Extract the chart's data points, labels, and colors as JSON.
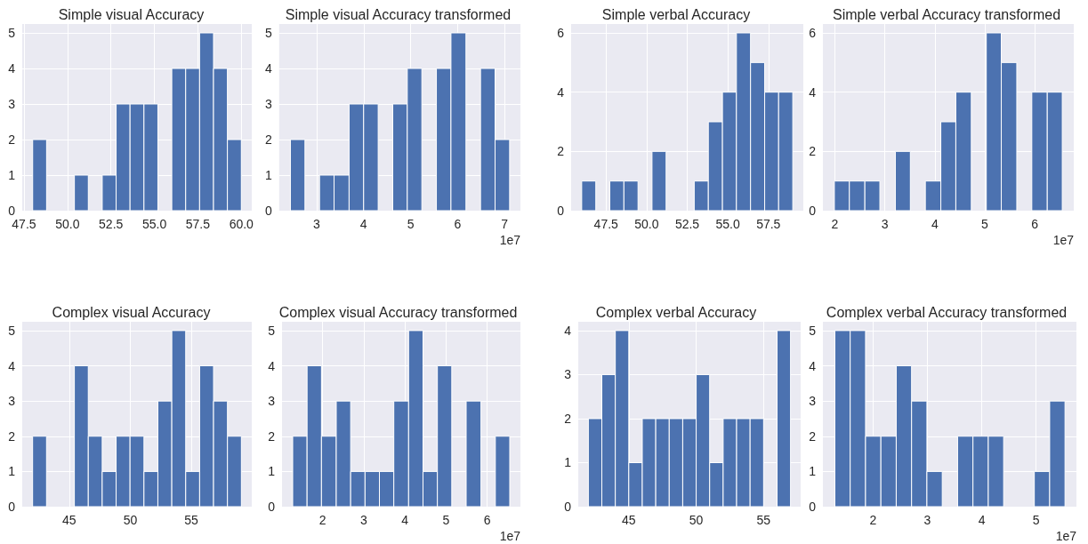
{
  "chart_data": [
    {
      "type": "histogram",
      "title": "Simple visual Accuracy",
      "color": "#4c72b0",
      "grid": true,
      "bins": [
        48.0,
        48.8,
        49.6,
        50.4,
        51.2,
        52.0,
        52.8,
        53.6,
        54.4,
        55.2,
        56.0,
        56.8,
        57.6,
        58.4,
        59.2,
        60.0
      ],
      "values": [
        2,
        0,
        0,
        1,
        0,
        1,
        3,
        3,
        3,
        0,
        4,
        4,
        5,
        4,
        2
      ],
      "xlim": [
        47.4,
        60.6
      ],
      "xticks": [
        {
          "value": 47.5,
          "label": "47.5"
        },
        {
          "value": 50,
          "label": "50.0"
        },
        {
          "value": 52.5,
          "label": "52.5"
        },
        {
          "value": 55,
          "label": "55.0"
        },
        {
          "value": 57.5,
          "label": "57.5"
        },
        {
          "value": 60,
          "label": "60.0"
        }
      ],
      "ylim": [
        0,
        5.25
      ],
      "yticks": [
        0,
        1,
        2,
        3,
        4,
        5
      ]
    },
    {
      "type": "histogram",
      "title": "Simple visual Accuracy transformed",
      "color": "#4c72b0",
      "grid": true,
      "annotations": [
        "1e7"
      ],
      "bins": [
        2.44,
        2.75,
        3.06,
        3.37,
        3.69,
        4.0,
        4.31,
        4.62,
        4.93,
        5.24,
        5.55,
        5.86,
        6.18,
        6.49,
        6.8,
        7.11
      ],
      "values": [
        2,
        0,
        1,
        1,
        3,
        3,
        0,
        3,
        4,
        0,
        4,
        5,
        0,
        4,
        2
      ],
      "xlim": [
        2.2,
        7.34
      ],
      "xticks": [
        3,
        4,
        5,
        6,
        7
      ],
      "ylim": [
        0,
        5.25
      ],
      "yticks": [
        0,
        1,
        2,
        3,
        4,
        5
      ]
    },
    {
      "type": "histogram",
      "title": "Simple verbal Accuracy",
      "color": "#4c72b0",
      "grid": true,
      "bins": [
        46.0,
        46.87,
        47.73,
        48.6,
        49.47,
        50.33,
        51.2,
        52.07,
        52.93,
        53.8,
        54.67,
        55.53,
        56.4,
        57.27,
        58.13,
        59.0
      ],
      "values": [
        1,
        0,
        1,
        1,
        0,
        2,
        0,
        0,
        1,
        3,
        4,
        6,
        5,
        4,
        4
      ],
      "xlim": [
        45.35,
        59.65
      ],
      "xticks": [
        {
          "value": 47.5,
          "label": "47.5"
        },
        {
          "value": 50,
          "label": "50.0"
        },
        {
          "value": 52.5,
          "label": "52.5"
        },
        {
          "value": 55,
          "label": "55.0"
        },
        {
          "value": 57.5,
          "label": "57.5"
        }
      ],
      "ylim": [
        0,
        6.3
      ],
      "yticks": [
        0,
        2,
        4,
        6
      ]
    },
    {
      "type": "histogram",
      "title": "Simple verbal Accuracy transformed",
      "color": "#4c72b0",
      "grid": true,
      "annotations": [
        "1e7"
      ],
      "bins": [
        1.99,
        2.29,
        2.6,
        2.9,
        3.21,
        3.51,
        3.81,
        4.12,
        4.42,
        4.73,
        5.03,
        5.33,
        5.64,
        5.94,
        6.25,
        6.55
      ],
      "values": [
        1,
        1,
        1,
        0,
        2,
        0,
        1,
        3,
        4,
        0,
        6,
        5,
        0,
        4,
        4
      ],
      "xlim": [
        1.76,
        6.78
      ],
      "xticks": [
        2,
        3,
        4,
        5,
        6
      ],
      "ylim": [
        0,
        6.3
      ],
      "yticks": [
        0,
        2,
        4,
        6
      ]
    },
    {
      "type": "histogram",
      "title": "Complex visual Accuracy",
      "color": "#4c72b0",
      "grid": true,
      "bins": [
        42.0,
        43.14,
        44.28,
        45.42,
        46.56,
        47.7,
        48.84,
        49.98,
        51.12,
        52.26,
        53.4,
        54.54,
        55.68,
        56.82,
        57.96,
        59.1
      ],
      "values": [
        2,
        0,
        0,
        4,
        2,
        1,
        2,
        2,
        1,
        3,
        5,
        1,
        4,
        3,
        2
      ],
      "xlim": [
        41.15,
        59.95
      ],
      "xticks": [
        45,
        50,
        55
      ],
      "ylim": [
        0,
        5.25
      ],
      "yticks": [
        0,
        1,
        2,
        3,
        4,
        5
      ]
    },
    {
      "type": "histogram",
      "title": "Complex visual Accuracy transformed",
      "color": "#4c72b0",
      "grid": true,
      "annotations": [
        "1e7"
      ],
      "bins": [
        1.27,
        1.62,
        1.97,
        2.33,
        2.68,
        3.03,
        3.38,
        3.73,
        4.09,
        4.44,
        4.79,
        5.14,
        5.49,
        5.85,
        6.2,
        6.55
      ],
      "values": [
        2,
        4,
        2,
        3,
        1,
        1,
        1,
        3,
        5,
        1,
        4,
        0,
        3,
        0,
        2
      ],
      "xlim": [
        1.01,
        6.81
      ],
      "xticks": [
        2,
        3,
        4,
        5,
        6
      ],
      "ylim": [
        0,
        5.25
      ],
      "yticks": [
        0,
        1,
        2,
        3,
        4,
        5
      ]
    },
    {
      "type": "histogram",
      "title": "Complex verbal Accuracy",
      "color": "#4c72b0",
      "grid": true,
      "bins": [
        42,
        43,
        44,
        45,
        46,
        47,
        48,
        49,
        50,
        51,
        52,
        53,
        54,
        55,
        56,
        57
      ],
      "values": [
        2,
        3,
        4,
        1,
        2,
        2,
        2,
        2,
        3,
        1,
        2,
        2,
        2,
        0,
        4
      ],
      "xlim": [
        41.25,
        57.75
      ],
      "xticks": [
        45,
        50,
        55
      ],
      "ylim": [
        0,
        4.2
      ],
      "yticks": [
        0,
        1,
        2,
        3,
        4
      ]
    },
    {
      "type": "histogram",
      "title": "Complex verbal Accuracy transformed",
      "color": "#4c72b0",
      "grid": true,
      "annotations": [
        "1e7"
      ],
      "bins": [
        1.3,
        1.582,
        1.864,
        2.146,
        2.428,
        2.71,
        2.992,
        3.274,
        3.556,
        3.838,
        4.12,
        4.402,
        4.684,
        4.966,
        5.248,
        5.53
      ],
      "values": [
        5,
        5,
        2,
        2,
        4,
        3,
        1,
        0,
        2,
        2,
        2,
        0,
        0,
        1,
        3
      ],
      "xlim": [
        1.08,
        5.74
      ],
      "xticks": [
        2,
        3,
        4,
        5
      ],
      "ylim": [
        0,
        5.25
      ],
      "yticks": [
        0,
        1,
        2,
        3,
        4,
        5
      ]
    }
  ]
}
